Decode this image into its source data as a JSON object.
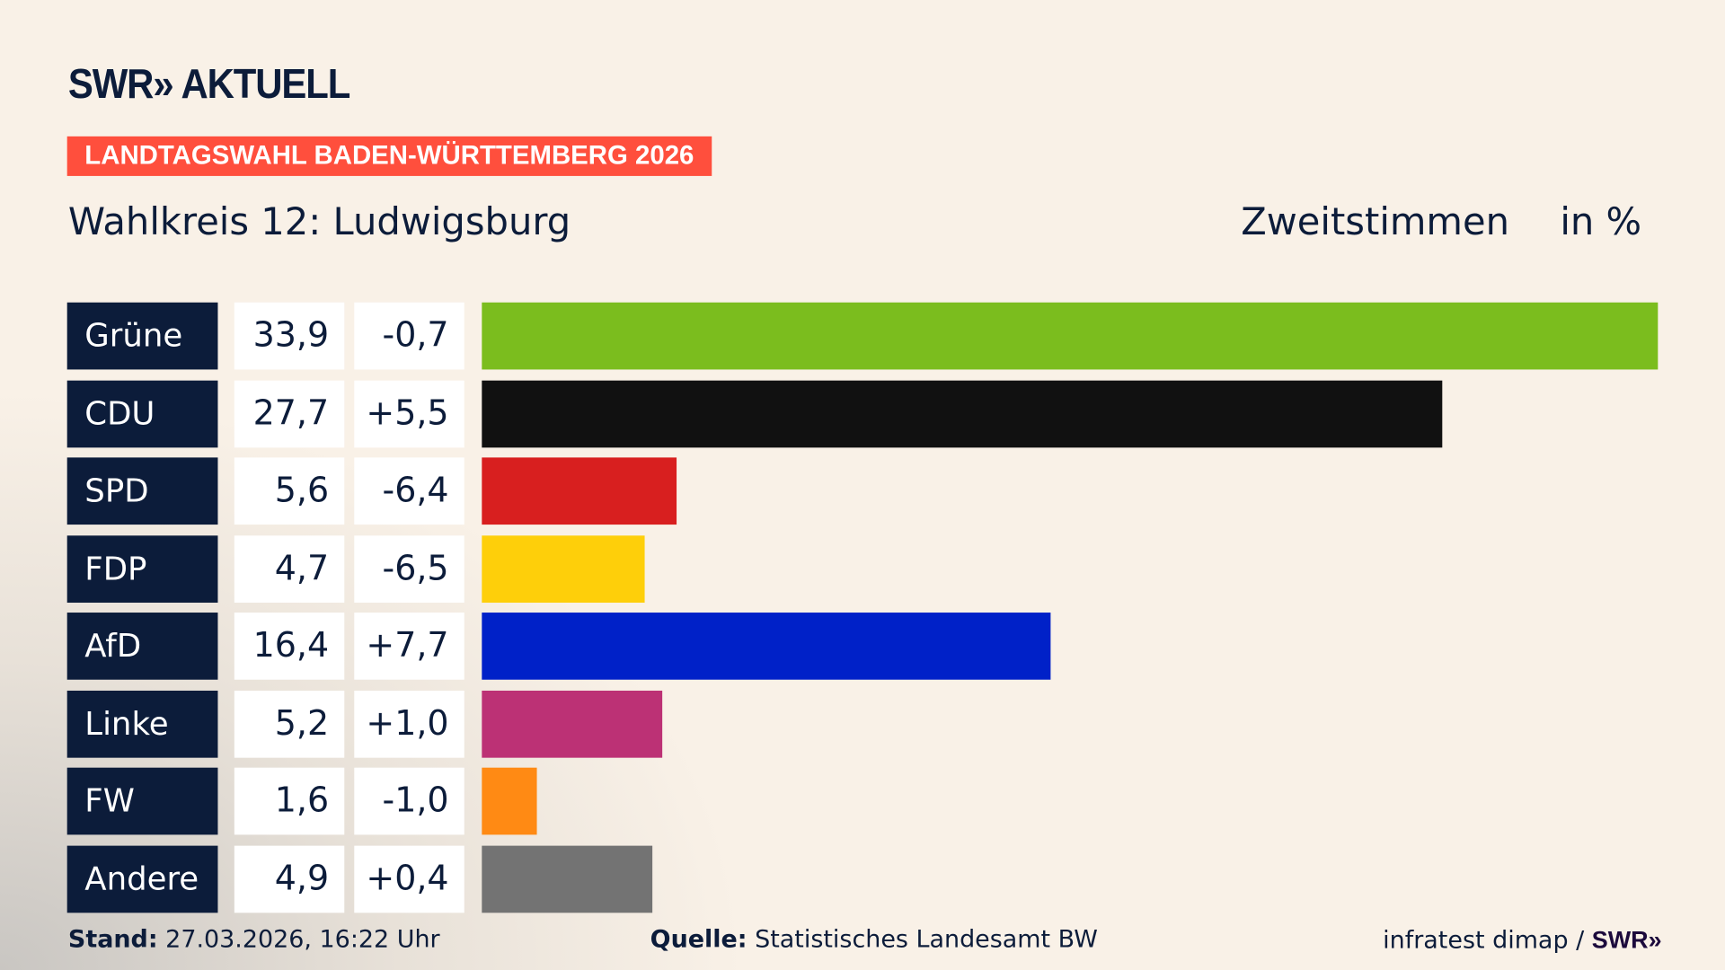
{
  "header": {
    "logo": "SWR» AKTUELL",
    "banner": "LANDTAGSWAHL BADEN-WÜRTTEMBERG 2026",
    "subtitle": "Wahlkreis 12: Ludwigsburg",
    "measure": "Zweitstimmen",
    "unit": "in %"
  },
  "chart_data": {
    "type": "bar",
    "orientation": "horizontal",
    "categories": [
      "Grüne",
      "CDU",
      "SPD",
      "FDP",
      "AfD",
      "Linke",
      "FW",
      "Andere"
    ],
    "values": [
      33.9,
      27.7,
      5.6,
      4.7,
      16.4,
      5.2,
      1.6,
      4.9
    ],
    "value_labels": [
      "33,9",
      "27,7",
      "5,6",
      "4,7",
      "16,4",
      "5,2",
      "1,6",
      "4,9"
    ],
    "changes": [
      -0.7,
      5.5,
      -6.4,
      -6.5,
      7.7,
      1.0,
      -1.0,
      0.4
    ],
    "change_labels": [
      "-0,7",
      "+5,5",
      "-6,4",
      "-6,5",
      "+7,7",
      "+1,0",
      "-1,0",
      "+0,4"
    ],
    "colors": [
      "#7bbd1e",
      "#111111",
      "#d81f1f",
      "#fecf0a",
      "#0021c8",
      "#bc3175",
      "#ff8a14",
      "#737373"
    ],
    "grid": false
  },
  "footer": {
    "stand_label": "Stand:",
    "stand_value": " 27.03.2026, 16:22 Uhr",
    "source_label": "Quelle:",
    "source_value": " Statistisches Landesamt BW",
    "credit": "infratest dimap / ",
    "credit_logo": "SWR»"
  }
}
